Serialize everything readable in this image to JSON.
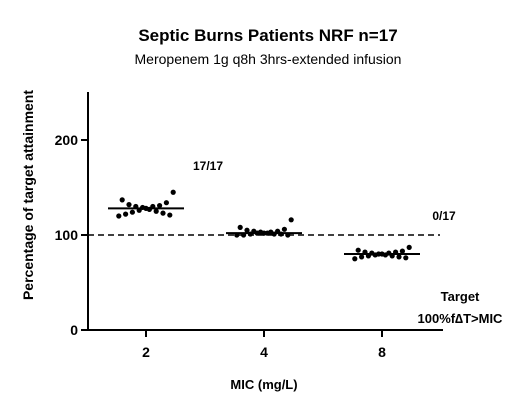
{
  "chart_data": {
    "type": "scatter",
    "title": "Septic Burns Patients NRF n=17",
    "subtitle": "Meropenem 1g q8h 3hrs-extended infusion",
    "xlabel": "MIC (mg/L)",
    "ylabel": "Percentage of target attainment",
    "categories": [
      "2",
      "4",
      "8"
    ],
    "ylim": [
      0,
      250
    ],
    "yticks": [
      0,
      100,
      200
    ],
    "reference_line": {
      "y": 100,
      "style": "dashed"
    },
    "grid": false,
    "series": [
      {
        "category": "2",
        "median": 128,
        "values": [
          145,
          137,
          134,
          132,
          131,
          130,
          130,
          129,
          128,
          127,
          126,
          125,
          124,
          123,
          122,
          121,
          120
        ]
      },
      {
        "category": "4",
        "median": 102,
        "values": [
          116,
          108,
          106,
          105,
          104,
          104,
          103,
          103,
          102,
          102,
          102,
          101,
          101,
          101,
          100,
          100,
          100
        ]
      },
      {
        "category": "8",
        "median": 80,
        "values": [
          87,
          84,
          83,
          82,
          82,
          81,
          81,
          80,
          80,
          79,
          79,
          78,
          78,
          77,
          77,
          76,
          75
        ]
      }
    ],
    "annotations": [
      {
        "text": "17/17",
        "category": "2"
      },
      {
        "text": "0/17",
        "category": "8"
      }
    ],
    "target_label_line1": "Target",
    "target_label_line2": "100%f∆T>MIC"
  }
}
